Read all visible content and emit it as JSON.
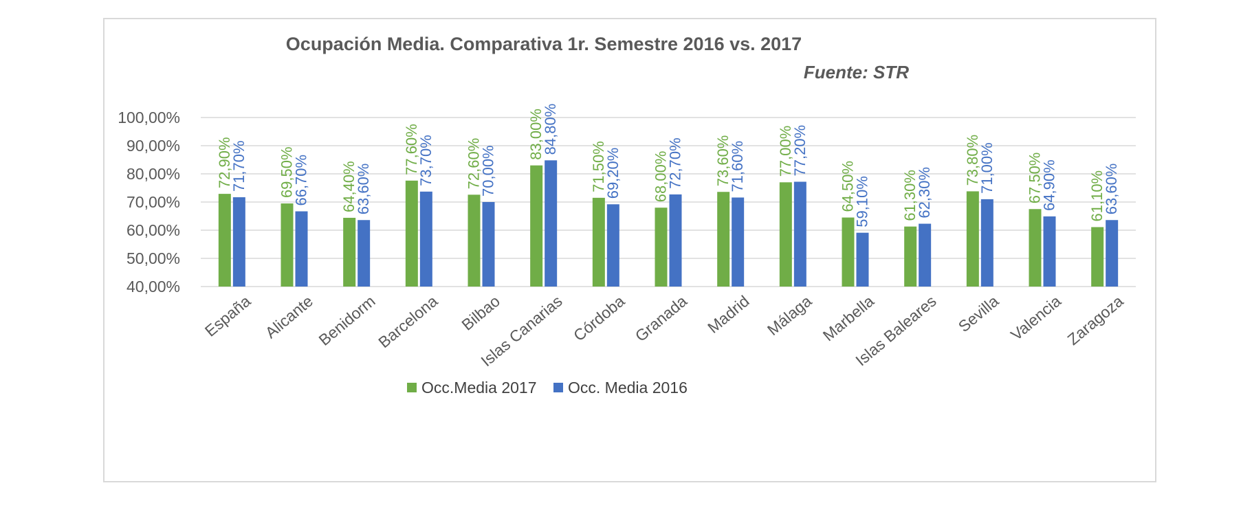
{
  "chart_data": {
    "type": "bar",
    "title": "Ocupación Media. Comparativa 1r. Semestre 2016 vs. 2017",
    "subtitle": "Fuente: STR",
    "xlabel": "",
    "ylabel": "",
    "ylim": [
      40,
      100
    ],
    "yticks": [
      "40,00%",
      "50,00%",
      "60,00%",
      "70,00%",
      "80,00%",
      "90,00%",
      "100,00%"
    ],
    "grid": true,
    "legend_position": "bottom",
    "categories": [
      "España",
      "Alicante",
      "Benidorm",
      "Barcelona",
      "Bilbao",
      "Islas Canarias",
      "Córdoba",
      "Granada",
      "Madrid",
      "Málaga",
      "Marbella",
      "Islas Baleares",
      "Sevilla",
      "Valencia",
      "Zaragoza"
    ],
    "series": [
      {
        "name": "Occ.Media 2017",
        "color": "#70ad47",
        "values": [
          72.9,
          69.5,
          64.4,
          77.6,
          72.6,
          83.0,
          71.5,
          68.0,
          73.6,
          77.0,
          64.5,
          61.3,
          73.8,
          67.5,
          61.1
        ],
        "labels": [
          "72,90%",
          "69,50%",
          "64,40%",
          "77,60%",
          "72,60%",
          "83,00%",
          "71,50%",
          "68,00%",
          "73,60%",
          "77,00%",
          "64,50%",
          "61,30%",
          "73,80%",
          "67,50%",
          "61,10%"
        ]
      },
      {
        "name": "Occ. Media 2016",
        "color": "#4472c4",
        "values": [
          71.7,
          66.7,
          63.6,
          73.7,
          70.0,
          84.8,
          69.2,
          72.7,
          71.6,
          77.2,
          59.1,
          62.3,
          71.0,
          64.9,
          63.6
        ],
        "labels": [
          "71,70%",
          "66,70%",
          "63,60%",
          "73,70%",
          "70,00%",
          "84,80%",
          "69,20%",
          "72,70%",
          "71,60%",
          "77,20%",
          "59,10%",
          "62,30%",
          "71,00%",
          "64,90%",
          "63,60%"
        ]
      }
    ]
  }
}
